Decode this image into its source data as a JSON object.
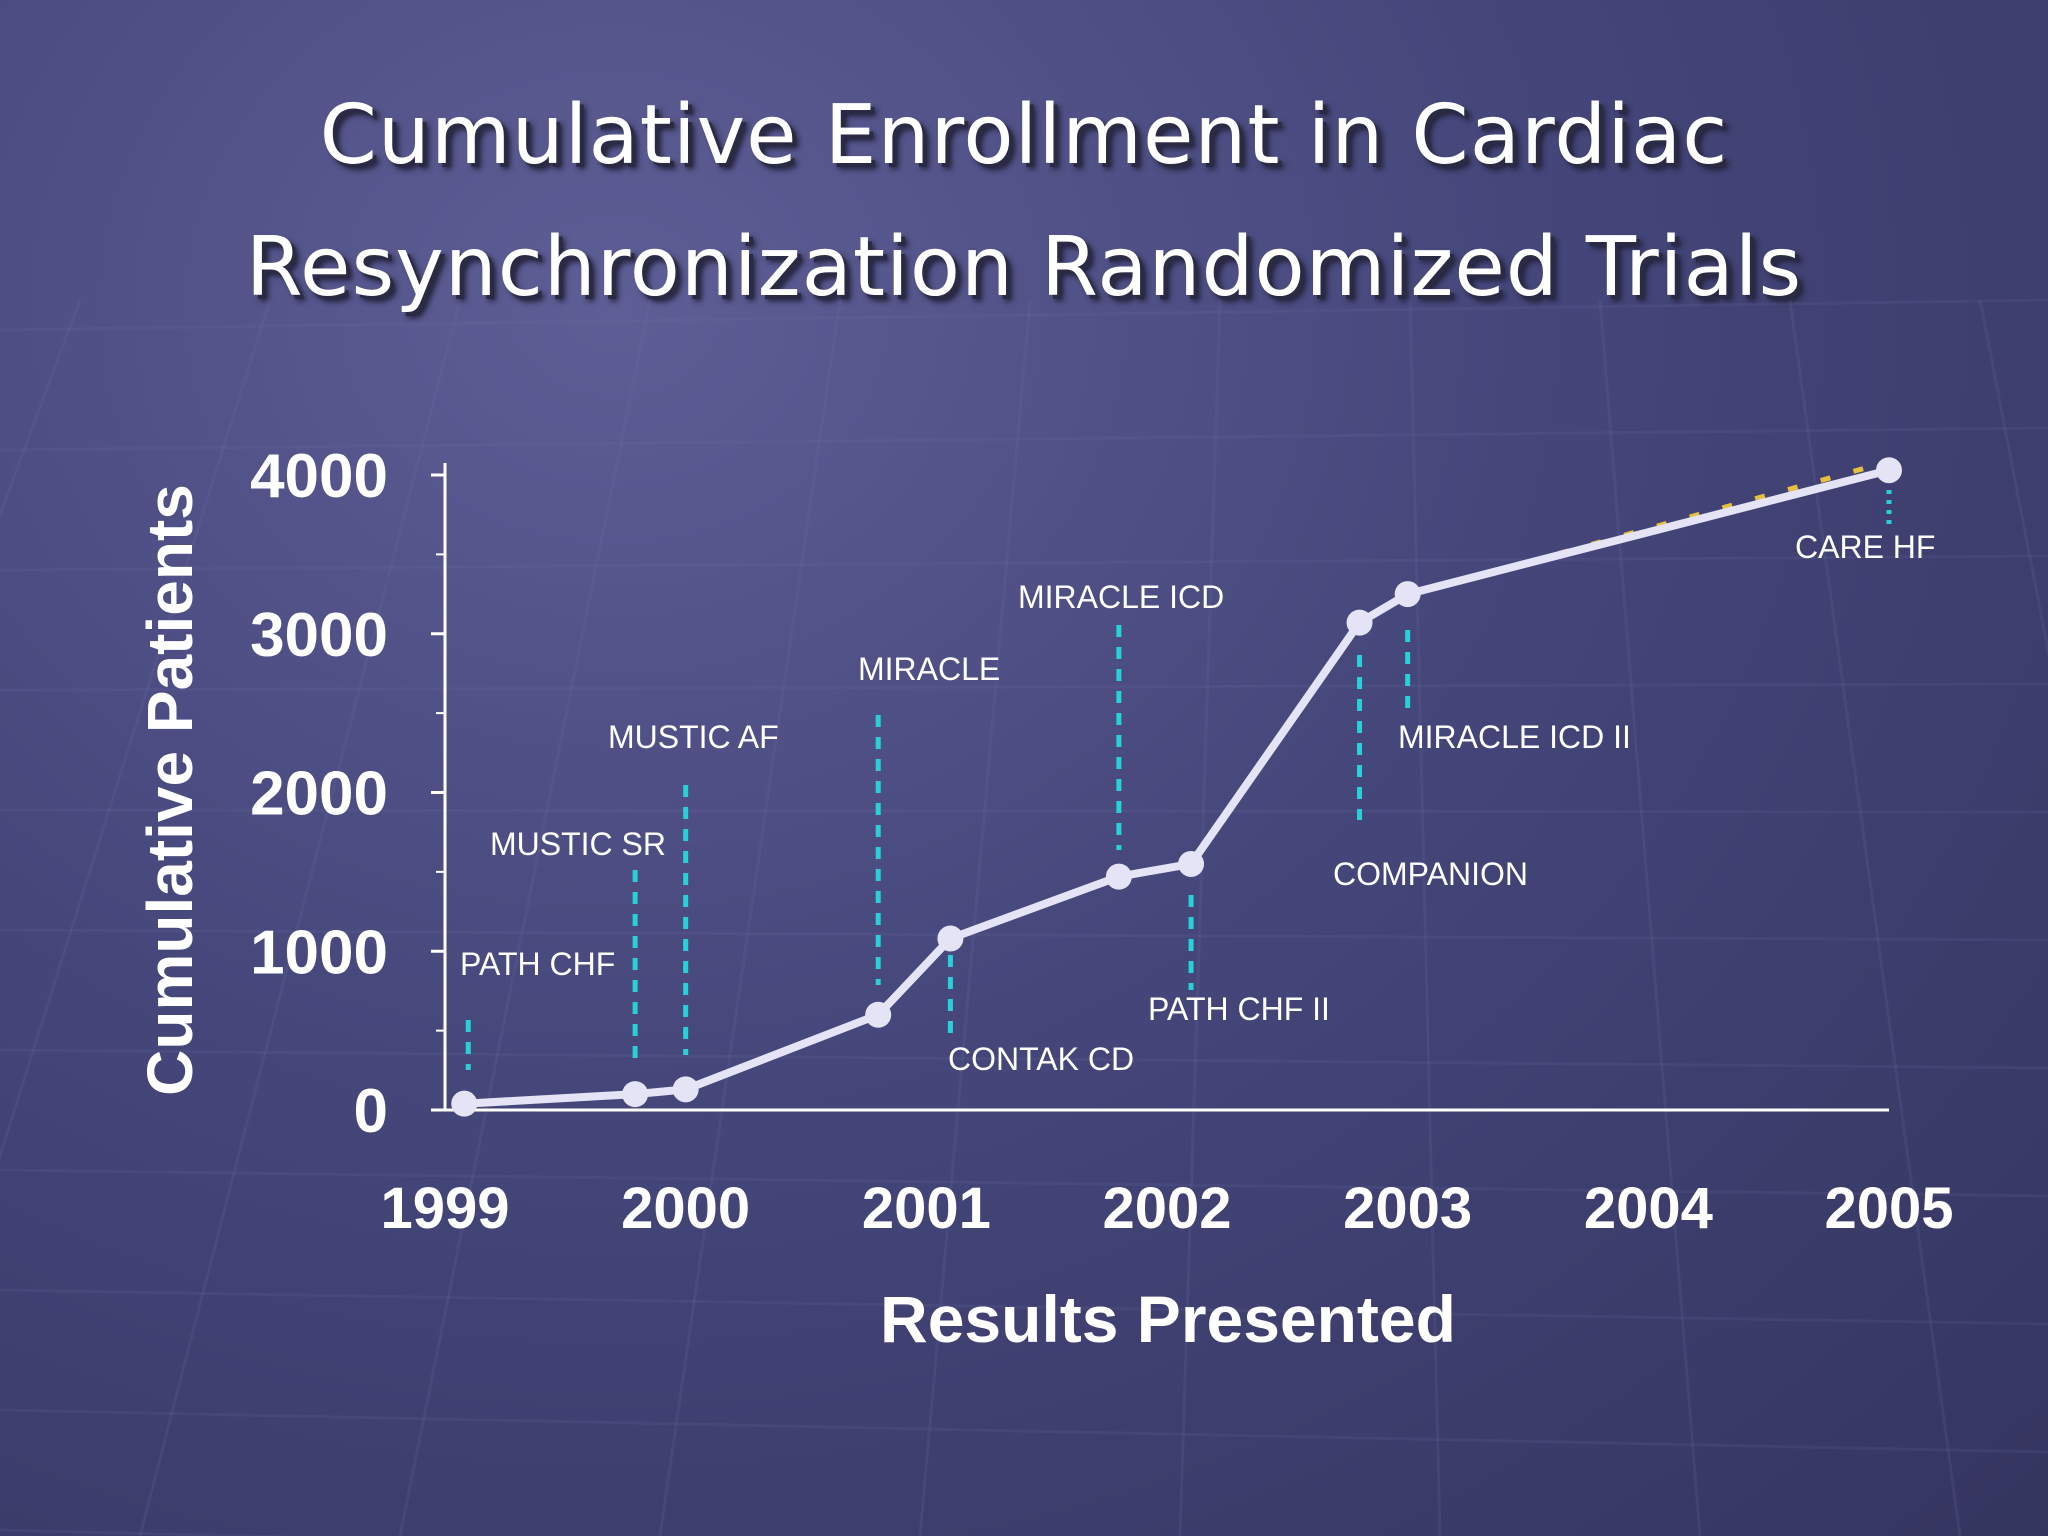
{
  "title_lines": [
    "Cumulative Enrollment in Cardiac",
    "Resynchronization Randomized Trials"
  ],
  "chart_data": {
    "type": "line",
    "title": "Cumulative Enrollment in Cardiac Resynchronization Randomized Trials",
    "xlabel": "Results Presented",
    "ylabel": "Cumulative Patients",
    "xlim": [
      1999,
      2005
    ],
    "ylim": [
      0,
      4000
    ],
    "x_ticks": [
      "1999",
      "2000",
      "2001",
      "2002",
      "2003",
      "2004",
      "2005"
    ],
    "y_ticks": [
      "0",
      "1000",
      "2000",
      "3000",
      "4000"
    ],
    "series": [
      {
        "name": "Cumulative Patients",
        "points": [
          {
            "trial": "PATH CHF",
            "year": 1999.08,
            "value": 40
          },
          {
            "trial": "MUSTIC SR",
            "year": 1999.79,
            "value": 100
          },
          {
            "trial": "MUSTIC AF",
            "year": 2000.0,
            "value": 130
          },
          {
            "trial": "MIRACLE",
            "year": 2000.8,
            "value": 600
          },
          {
            "trial": "CONTAK CD",
            "year": 2001.1,
            "value": 1080
          },
          {
            "trial": "MIRACLE ICD",
            "year": 2001.8,
            "value": 1470
          },
          {
            "trial": "PATH CHF II",
            "year": 2002.1,
            "value": 1550
          },
          {
            "trial": "COMPANION",
            "year": 2002.8,
            "value": 3070
          },
          {
            "trial": "MIRACLE ICD II",
            "year": 2003.0,
            "value": 3250
          },
          {
            "trial": "CARE HF",
            "year": 2005.0,
            "value": 4030
          }
        ]
      }
    ],
    "annotations": [
      {
        "text": "PATH CHF",
        "trial": "PATH CHF"
      },
      {
        "text": "MUSTIC SR",
        "trial": "MUSTIC SR"
      },
      {
        "text": "MUSTIC AF",
        "trial": "MUSTIC AF"
      },
      {
        "text": "MIRACLE",
        "trial": "MIRACLE"
      },
      {
        "text": "CONTAK CD",
        "trial": "CONTAK CD"
      },
      {
        "text": "MIRACLE ICD",
        "trial": "MIRACLE ICD"
      },
      {
        "text": "PATH CHF II",
        "trial": "PATH CHF II"
      },
      {
        "text": "COMPANION",
        "trial": "COMPANION"
      },
      {
        "text": "MIRACLE ICD II",
        "trial": "MIRACLE ICD II"
      },
      {
        "text": "CARE HF",
        "trial": "CARE HF"
      }
    ],
    "colors": {
      "line": "#e4e4f6",
      "leader": "#2ad0d8",
      "axis": "#ffffff",
      "trend": "#e8c040"
    }
  }
}
